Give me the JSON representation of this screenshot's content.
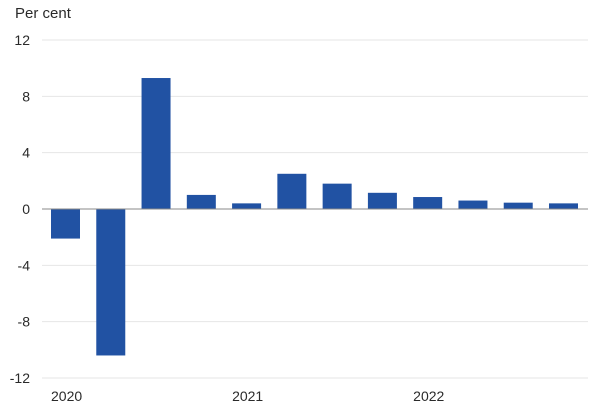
{
  "chart_data": {
    "type": "bar",
    "unit_label": "Per cent",
    "categories": [
      "2020Q1",
      "2020Q2",
      "2020Q3",
      "2020Q4",
      "2021Q1",
      "2021Q2",
      "2021Q3",
      "2021Q4",
      "2022Q1",
      "2022Q2",
      "2022Q3",
      "2022Q4"
    ],
    "values": [
      -2.1,
      -10.4,
      9.3,
      1.0,
      0.4,
      2.5,
      1.8,
      1.15,
      0.85,
      0.6,
      0.45,
      0.4
    ],
    "x_tick_labels": [
      {
        "category_index": 0,
        "text": "2020"
      },
      {
        "category_index": 4,
        "text": "2021"
      },
      {
        "category_index": 8,
        "text": "2022"
      }
    ],
    "y_ticks": [
      12,
      8,
      4,
      0,
      -4,
      -8,
      -12
    ],
    "y_tick_labels": [
      "12",
      "8",
      "4",
      "0",
      "-4",
      "-8",
      "-12"
    ],
    "ylim": [
      -12,
      12
    ],
    "bar_color": "#2152a3",
    "grid": true,
    "grid_color": "#e6e6e6",
    "zero_line_color": "#888888"
  }
}
